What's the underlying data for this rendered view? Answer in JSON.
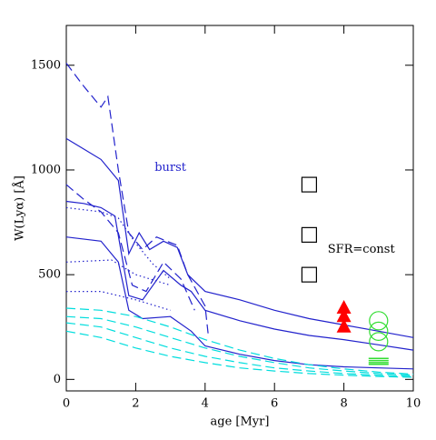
{
  "chart_data": {
    "type": "line",
    "xlabel": "age [Myr]",
    "ylabel": "W(Lyα) [Å]",
    "xlim": [
      0,
      10
    ],
    "ylim": [
      -55,
      1690
    ],
    "xticks": [
      0,
      2,
      4,
      6,
      8,
      10
    ],
    "yticks": [
      0,
      500,
      1000,
      1500
    ],
    "annotations": [
      {
        "text": "burst",
        "x": 3,
        "y": 1010,
        "color": "#2222cc"
      },
      {
        "text": "SFR=const",
        "x": 8.5,
        "y": 620,
        "color": "#000000"
      }
    ],
    "series": [
      {
        "color": "#2222cc",
        "dash": "solid",
        "x": [
          0,
          0.5,
          1,
          1.5,
          1.8,
          2.1,
          2.4,
          2.8,
          3.2,
          3.5,
          4,
          5,
          6,
          7,
          8,
          9,
          10
        ],
        "values": [
          1150,
          1100,
          1050,
          950,
          600,
          700,
          620,
          660,
          630,
          500,
          420,
          380,
          330,
          290,
          260,
          230,
          200
        ]
      },
      {
        "color": "#2222cc",
        "dash": "solid",
        "x": [
          0,
          0.5,
          1,
          1.4,
          1.8,
          2.2,
          2.8,
          3.3,
          3.6,
          4,
          5,
          6,
          7,
          8,
          9,
          10
        ],
        "values": [
          850,
          840,
          820,
          780,
          400,
          380,
          520,
          450,
          420,
          330,
          280,
          240,
          210,
          190,
          165,
          140
        ]
      },
      {
        "color": "#2222cc",
        "dash": "solid",
        "x": [
          0,
          1,
          1.5,
          1.8,
          2.2,
          3,
          3.6,
          4,
          5,
          6,
          7,
          8,
          9,
          10
        ],
        "values": [
          680,
          660,
          560,
          330,
          290,
          300,
          230,
          160,
          120,
          90,
          70,
          60,
          55,
          50
        ]
      },
      {
        "color": "#2222cc",
        "dash": "dashed",
        "x": [
          0,
          0.5,
          1,
          1.2,
          1.5,
          1.8,
          2.2,
          2.6,
          3.2,
          3.5,
          4,
          4.1
        ],
        "values": [
          1510,
          1400,
          1300,
          1350,
          1000,
          700,
          620,
          680,
          640,
          500,
          350,
          200
        ]
      },
      {
        "color": "#2222cc",
        "dash": "dashed",
        "x": [
          0,
          0.5,
          1,
          1.5,
          1.9,
          2.3,
          2.8,
          3.3,
          3.7
        ],
        "values": [
          930,
          860,
          800,
          700,
          450,
          420,
          560,
          480,
          330
        ]
      },
      {
        "color": "#2222cc",
        "dash": "dotted",
        "x": [
          0,
          1,
          1.5,
          2,
          2.5,
          3
        ],
        "values": [
          820,
          800,
          770,
          650,
          550,
          480
        ]
      },
      {
        "color": "#2222cc",
        "dash": "dotted",
        "x": [
          0,
          1.3,
          2,
          3
        ],
        "values": [
          560,
          570,
          500,
          450
        ]
      },
      {
        "color": "#2222cc",
        "dash": "dotted",
        "x": [
          0,
          1,
          2,
          3
        ],
        "values": [
          420,
          420,
          380,
          330
        ]
      },
      {
        "color": "#00dddd",
        "dash": "dashed",
        "x": [
          0,
          1,
          2,
          3,
          4,
          5,
          6,
          7,
          8,
          9,
          10
        ],
        "values": [
          340,
          330,
          300,
          250,
          190,
          140,
          100,
          70,
          50,
          35,
          25
        ]
      },
      {
        "color": "#00dddd",
        "dash": "dashed",
        "x": [
          0,
          1,
          2,
          3,
          4,
          5,
          6,
          7,
          8,
          9,
          10
        ],
        "values": [
          300,
          290,
          250,
          200,
          150,
          110,
          80,
          55,
          40,
          28,
          20
        ]
      },
      {
        "color": "#00dddd",
        "dash": "dashed",
        "x": [
          0,
          1,
          2,
          3,
          4,
          5,
          6,
          7,
          8,
          9,
          10
        ],
        "values": [
          270,
          250,
          200,
          150,
          110,
          80,
          55,
          40,
          28,
          20,
          14
        ]
      },
      {
        "color": "#00dddd",
        "dash": "dashed",
        "x": [
          0,
          1,
          2,
          3,
          4,
          5,
          6,
          7,
          8,
          9,
          10
        ],
        "values": [
          230,
          200,
          150,
          110,
          80,
          55,
          40,
          28,
          20,
          14,
          10
        ]
      },
      {
        "color": "#000000",
        "marker": "square",
        "x": [
          7,
          7,
          7
        ],
        "values": [
          930,
          690,
          500
        ]
      },
      {
        "color": "#ff0000",
        "marker": "triangle",
        "x": [
          8,
          8,
          8
        ],
        "values": [
          340,
          300,
          250
        ]
      },
      {
        "color": "#33dd33",
        "marker": "circle",
        "x": [
          9,
          9,
          9
        ],
        "values": [
          280,
          230,
          180
        ]
      },
      {
        "color": "#33dd33",
        "marker": "hline",
        "x": [
          9,
          9,
          9,
          9
        ],
        "values": [
          100,
          90,
          80,
          72
        ]
      }
    ]
  }
}
